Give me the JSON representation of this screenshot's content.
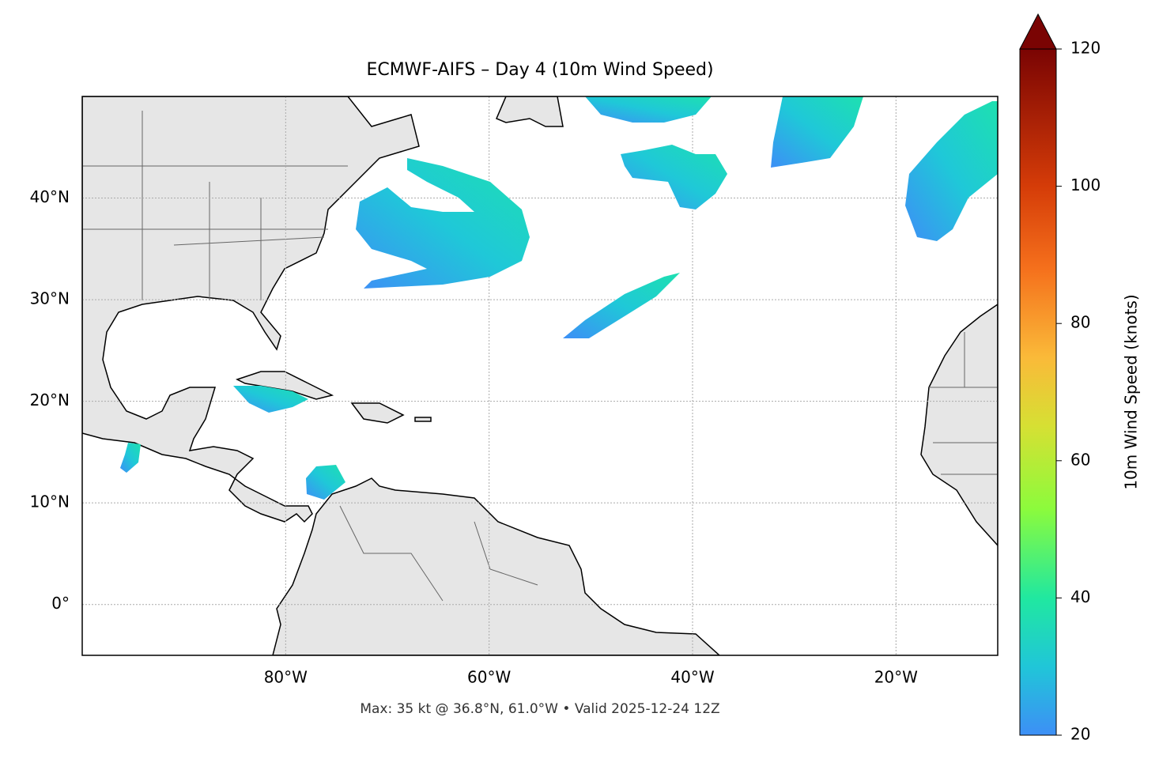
{
  "map": {
    "title": "ECMWF-AIFS – Day 4 (10m Wind Speed)",
    "lon_lim": [
      -100,
      -10
    ],
    "lat_lim": [
      -5,
      50
    ],
    "lon_ticks": [
      {
        "value": -80,
        "label": "80°W"
      },
      {
        "value": -60,
        "label": "60°W"
      },
      {
        "value": -40,
        "label": "40°W"
      },
      {
        "value": -20,
        "label": "20°W"
      }
    ],
    "lat_ticks": [
      {
        "value": 0,
        "label": "0°"
      },
      {
        "value": 10,
        "label": "10°N"
      },
      {
        "value": 20,
        "label": "20°N"
      },
      {
        "value": 30,
        "label": "30°N"
      },
      {
        "value": 40,
        "label": "40°N"
      }
    ],
    "grid": true,
    "footer": "Max: 35 kt @ 36.8°N, 61.0°W • Valid 2025-12-24 12Z",
    "colorbar": {
      "label": "10m Wind Speed (knots)",
      "lim": [
        20,
        120
      ],
      "ticks": [
        20,
        40,
        60,
        80,
        100,
        120
      ]
    }
  }
}
